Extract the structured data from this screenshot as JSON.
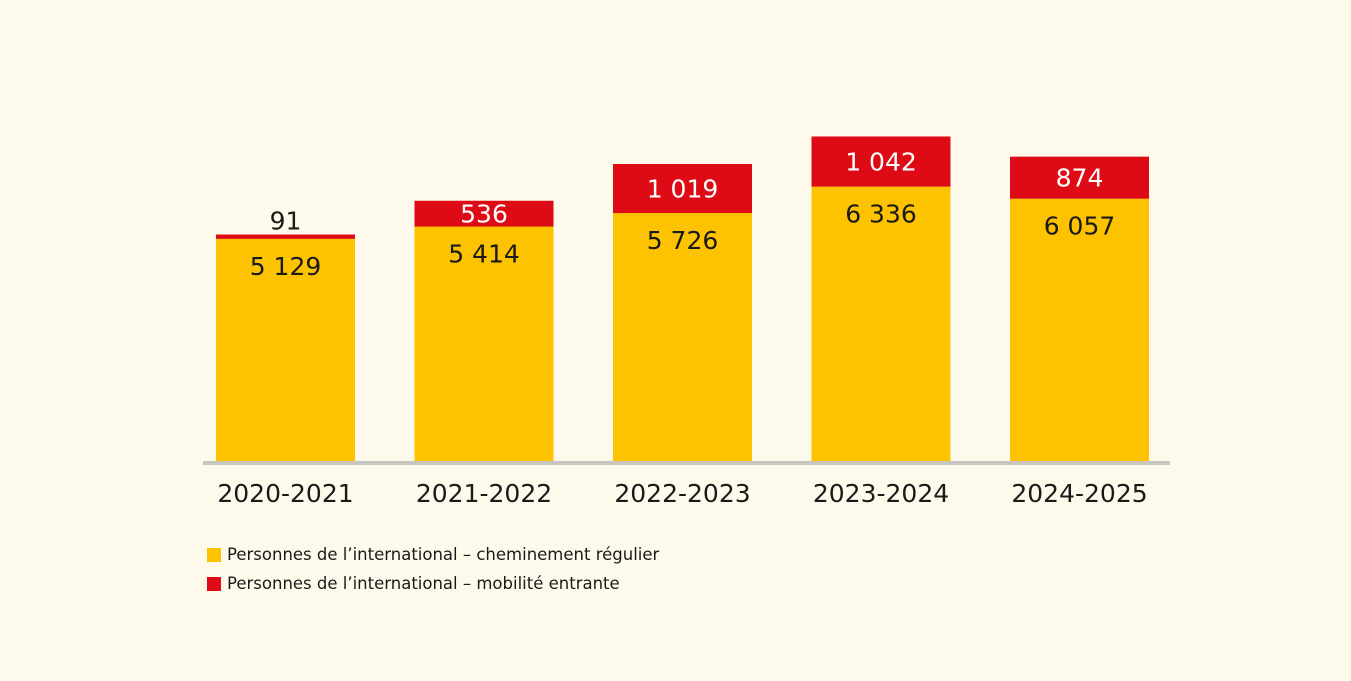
{
  "chart_data": {
    "type": "bar",
    "stacked": true,
    "title": "",
    "xlabel": "",
    "ylabel": "",
    "categories": [
      "2020-2021",
      "2021-2022",
      "2022-2023",
      "2023-2024",
      "2024-2025"
    ],
    "series": [
      {
        "name": "Personnes de l’international – cheminement régulier",
        "color": "#fdc300",
        "values": [
          5129,
          5414,
          5726,
          6336,
          6057
        ],
        "labels": [
          "5 129",
          "5 414",
          "5 726",
          "6 336",
          "6 057"
        ]
      },
      {
        "name": "Personnes de l’international – mobilité entrante",
        "color": "#de0b17",
        "values": [
          91,
          536,
          1019,
          1042,
          874
        ],
        "labels": [
          "91",
          "536",
          "1 019",
          "1 042",
          "874"
        ]
      }
    ],
    "grid": false,
    "y_axis_visible": false,
    "legend_position": "bottom-left"
  },
  "colors": {
    "background": "#fefaeb",
    "baseline": "#c8c6c0",
    "text_dark": "#1a1a1a",
    "text_light": "#ffffff"
  },
  "legend": [
    {
      "label": "Personnes de l’international – cheminement régulier",
      "color": "#fdc300"
    },
    {
      "label": "Personnes de l’international – mobilité entrante",
      "color": "#de0b17"
    }
  ]
}
